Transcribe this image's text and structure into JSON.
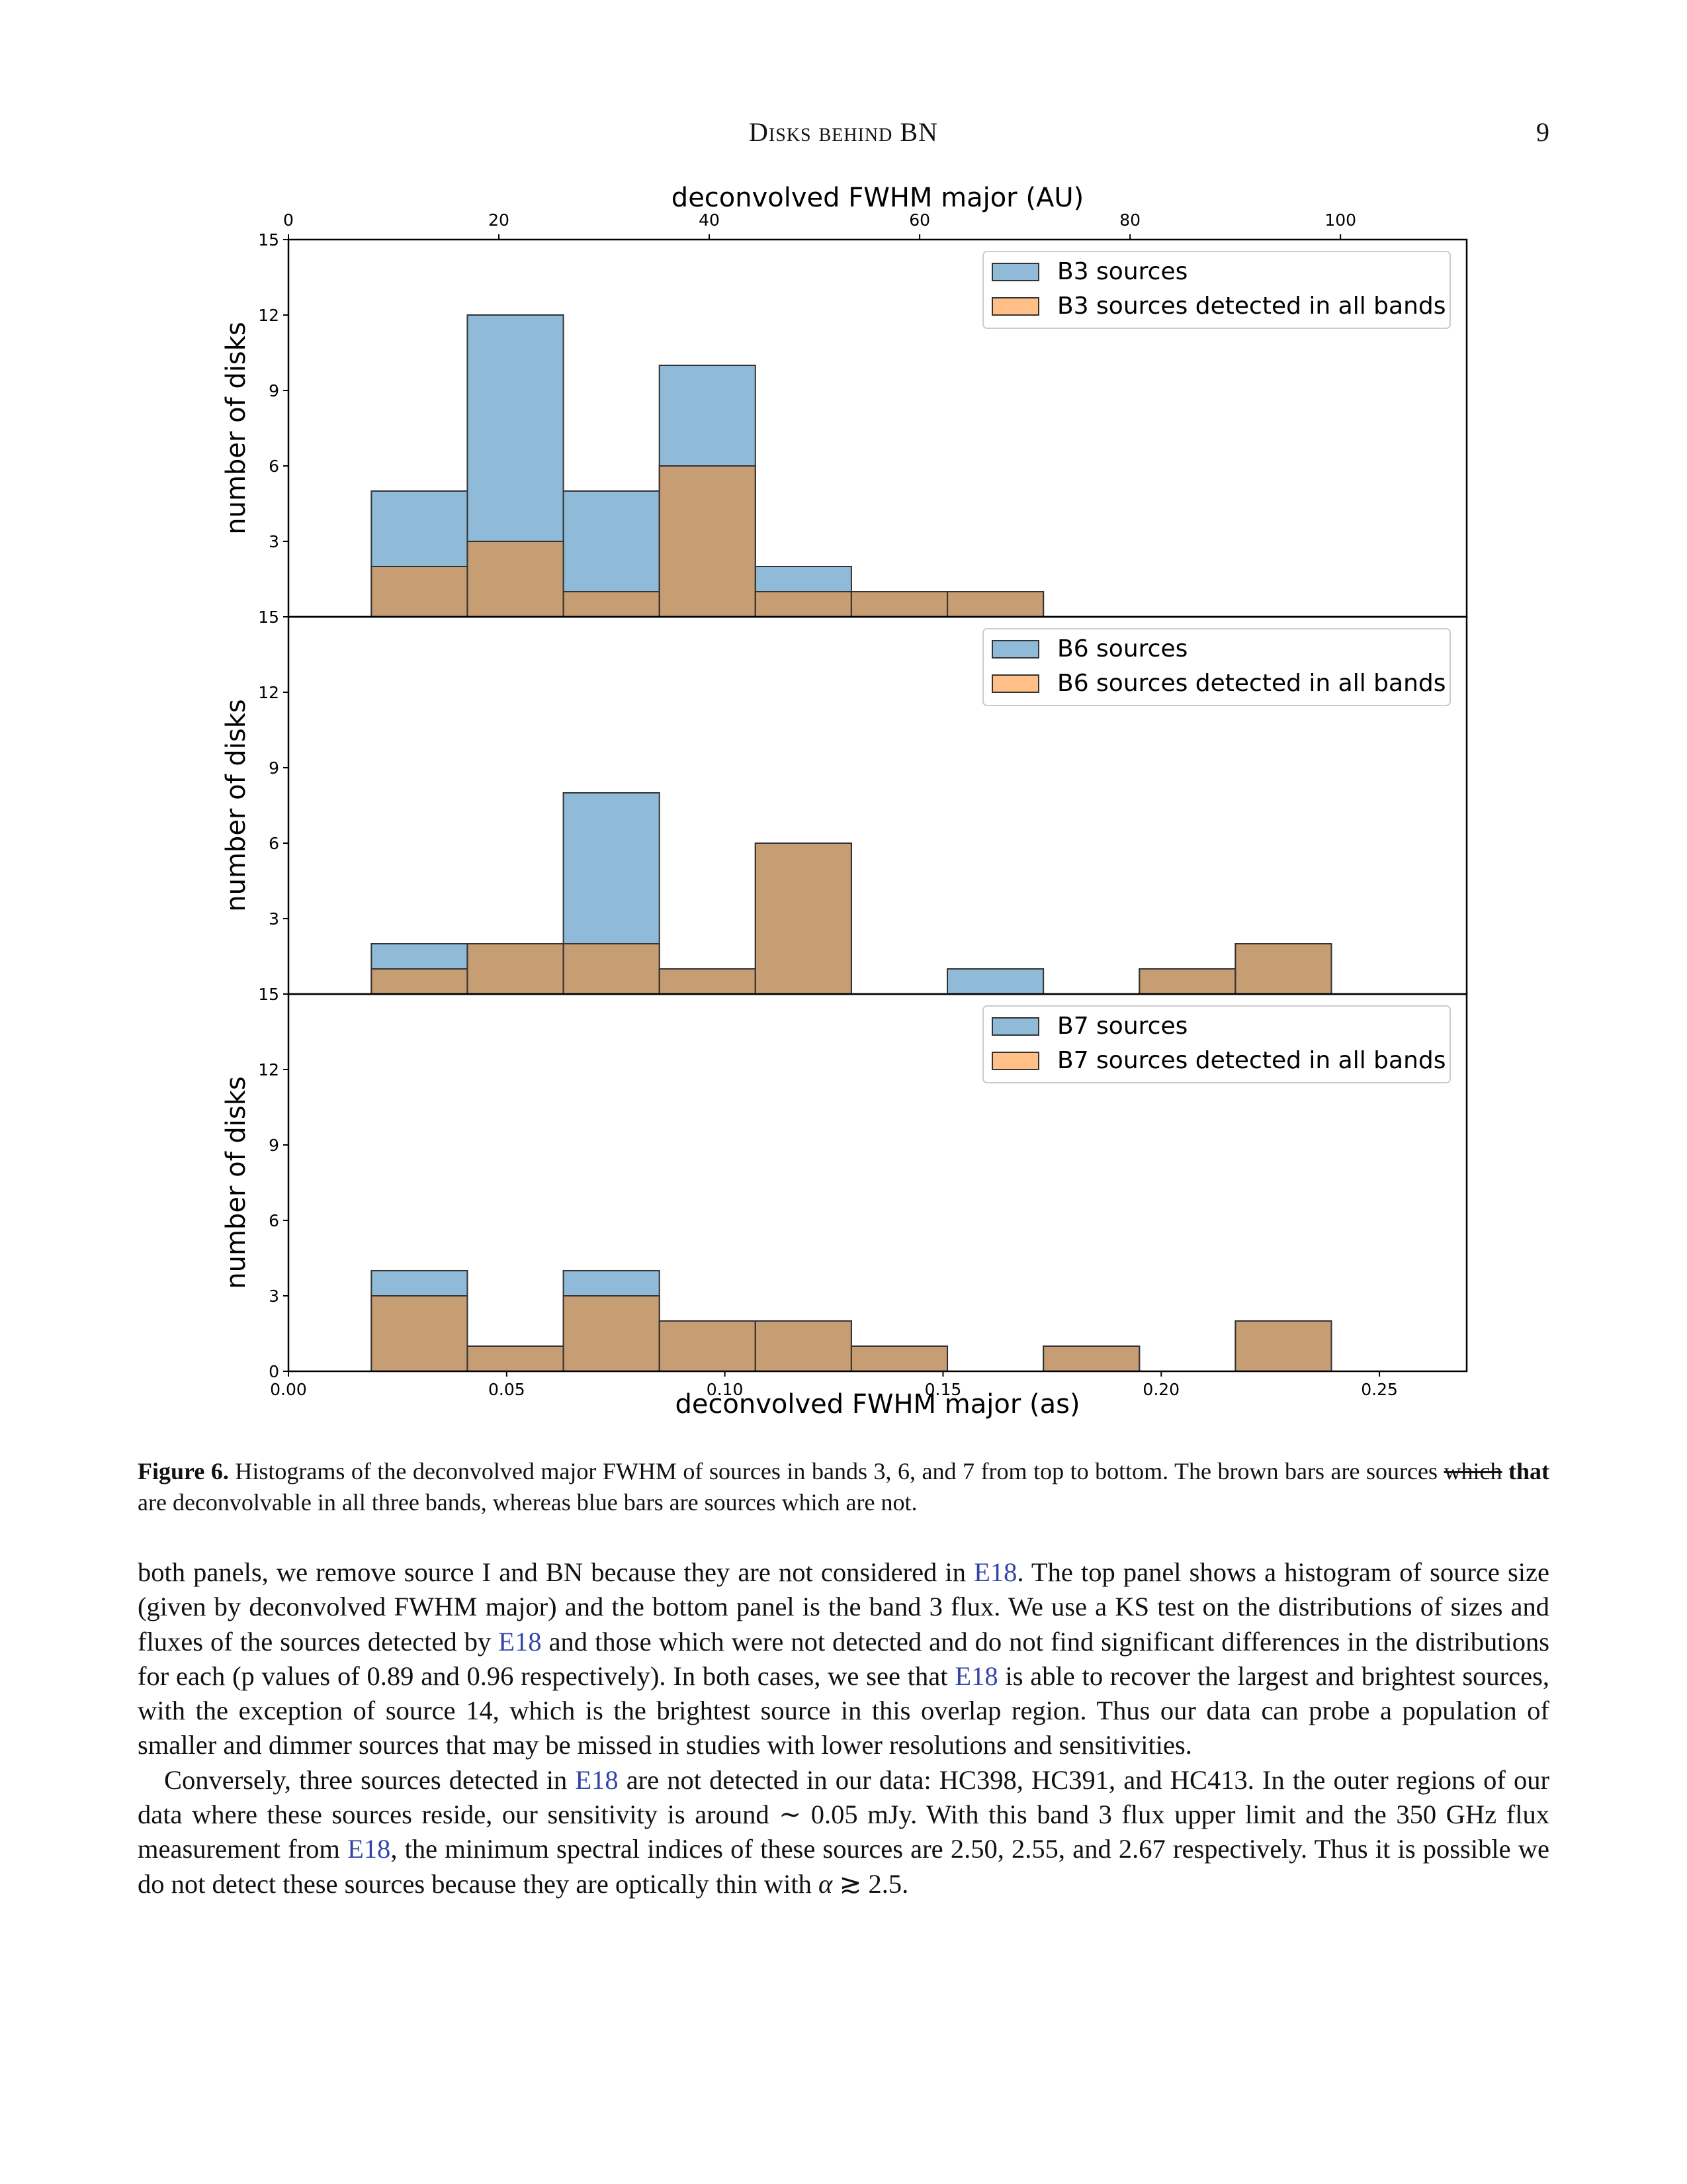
{
  "header": {
    "running_title": "Disks behind BN",
    "page_number": "9"
  },
  "chart_data": {
    "type": "bar",
    "subtype": "stacked-histogram-3-panels",
    "top_axis_label": "deconvolved FWHM major (AU)",
    "top_axis_ticks": [
      0,
      20,
      40,
      60,
      80,
      100
    ],
    "top_axis_range": [
      0,
      112
    ],
    "xlabel": "deconvolved FWHM major (as)",
    "x_ticks": [
      "0.00",
      "0.05",
      "0.10",
      "0.15",
      "0.20",
      "0.25"
    ],
    "xlim": [
      0,
      0.27
    ],
    "ylabel": "number of disks",
    "ylim": [
      0,
      15
    ],
    "y_ticks": [
      0,
      3,
      6,
      9,
      12,
      15
    ],
    "bin_edges": [
      0.019,
      0.041,
      0.063,
      0.085,
      0.107,
      0.129,
      0.151,
      0.173,
      0.195,
      0.217,
      0.239
    ],
    "legend_position": "top-right",
    "colors": {
      "all": "#1f77b4",
      "detected": "#ff7f0e",
      "overlap": "#c59b72",
      "edge": "#333333"
    },
    "panels": [
      {
        "band": "B3",
        "series": [
          {
            "name": "B3 sources",
            "values": [
              5,
              12,
              5,
              10,
              2,
              1,
              1,
              0,
              0,
              0
            ]
          },
          {
            "name": "B3 sources detected in all bands",
            "values": [
              2,
              3,
              1,
              6,
              1,
              1,
              1,
              0,
              0,
              0
            ]
          }
        ]
      },
      {
        "band": "B6",
        "series": [
          {
            "name": "B6 sources",
            "values": [
              2,
              2,
              8,
              1,
              6,
              0,
              1,
              0,
              1,
              2
            ]
          },
          {
            "name": "B6 sources detected in all bands",
            "values": [
              1,
              2,
              2,
              1,
              6,
              0,
              0,
              0,
              1,
              2
            ]
          }
        ]
      },
      {
        "band": "B7",
        "series": [
          {
            "name": "B7 sources",
            "values": [
              4,
              1,
              4,
              2,
              2,
              1,
              0,
              1,
              0,
              2
            ]
          },
          {
            "name": "B7 sources detected in all bands",
            "values": [
              3,
              1,
              3,
              2,
              2,
              1,
              0,
              1,
              0,
              2
            ]
          }
        ]
      }
    ]
  },
  "caption": {
    "label": "Figure 6.",
    "text_before": "Histograms of the deconvolved major FWHM of sources in bands 3, 6, and 7 from top to bottom. The brown bars are sources ",
    "struck": "which",
    "inserted": "that",
    "text_after": " are deconvolvable in all three bands, whereas blue bars are sources which are not."
  },
  "body": {
    "p1_a": "both panels, we remove source I and BN because they are not considered in ",
    "p1_cite1": "E18",
    "p1_b": ". The top panel shows a histogram of source size (given by deconvolved FWHM major) and the bottom panel is the band 3 flux. We use a KS test on the distributions of sizes and fluxes of the sources detected by ",
    "p1_cite2": "E18",
    "p1_c": " and those which were not detected and do not find significant differences in the distributions for each (p values of 0.89 and 0.96 respectively). In both cases, we see that ",
    "p1_cite3": "E18",
    "p1_d": " is able to recover the largest and brightest sources, with the exception of source 14, which is the brightest source in this overlap region. Thus our data can probe a population of smaller and dimmer sources that may be missed in studies with lower resolutions and sensitivities.",
    "p2_a": "Conversely, three sources detected in ",
    "p2_cite1": "E18",
    "p2_b": " are not detected in our data: HC398, HC391, and HC413. In the outer regions of our data where these sources reside, our sensitivity is around ∼ 0.05 mJy. With this band 3 flux upper limit and the 350 GHz flux measurement from ",
    "p2_cite2": "E18",
    "p2_c": ", the minimum spectral indices of these sources are 2.50, 2.55, and 2.67 respectively. Thus it is possible we do not detect these sources because they are optically thin with ",
    "p2_alpha": "α",
    "p2_d": " ≳ 2.5."
  }
}
